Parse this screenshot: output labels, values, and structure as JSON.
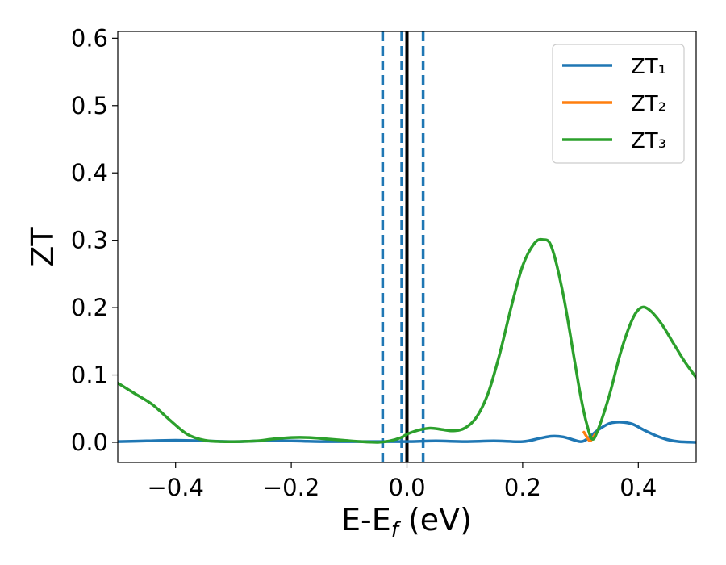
{
  "chart_data": {
    "type": "line",
    "xlabel": "E-E_f (eV)",
    "ylabel": "ZT",
    "xlim": [
      -0.5,
      0.5
    ],
    "ylim": [
      -0.03,
      0.61
    ],
    "xticks": [
      -0.4,
      -0.2,
      0.0,
      0.2,
      0.4
    ],
    "xtick_labels": [
      "−0.4",
      "−0.2",
      "0.0",
      "0.2",
      "0.4"
    ],
    "yticks": [
      0.0,
      0.1,
      0.2,
      0.3,
      0.4,
      0.5,
      0.6
    ],
    "ytick_labels": [
      "0.0",
      "0.1",
      "0.2",
      "0.3",
      "0.4",
      "0.5",
      "0.6"
    ],
    "grid": false,
    "legend_position": "top-right",
    "vlines": [
      {
        "x": -0.042,
        "style": "dashed",
        "color": "#1f77b4"
      },
      {
        "x": -0.009,
        "style": "dashed",
        "color": "#1f77b4"
      },
      {
        "x": 0.028,
        "style": "dashed",
        "color": "#1f77b4"
      },
      {
        "x": 0.0,
        "style": "solid",
        "color": "#000000"
      }
    ],
    "series": [
      {
        "name": "ZT₁",
        "color": "#1f77b4",
        "x": [
          -0.5,
          -0.45,
          -0.4,
          -0.35,
          -0.3,
          -0.25,
          -0.2,
          -0.15,
          -0.1,
          -0.05,
          0.0,
          0.05,
          0.1,
          0.15,
          0.2,
          0.23,
          0.25,
          0.27,
          0.29,
          0.3,
          0.31,
          0.33,
          0.35,
          0.37,
          0.39,
          0.41,
          0.43,
          0.45,
          0.47,
          0.5
        ],
        "y": [
          0.001,
          0.002,
          0.003,
          0.002,
          0.001,
          0.002,
          0.002,
          0.001,
          0.001,
          0.001,
          0.001,
          0.002,
          0.001,
          0.002,
          0.001,
          0.006,
          0.009,
          0.008,
          0.003,
          0.001,
          0.004,
          0.018,
          0.028,
          0.03,
          0.027,
          0.018,
          0.01,
          0.004,
          0.001,
          0.0
        ]
      },
      {
        "name": "ZT₂",
        "color": "#ff7f0e",
        "x": [
          0.306,
          0.311,
          0.316,
          0.321,
          0.326
        ],
        "y": [
          0.015,
          0.008,
          0.002,
          0.006,
          0.013
        ]
      },
      {
        "name": "ZT₃",
        "color": "#2ca02c",
        "x": [
          -0.5,
          -0.47,
          -0.44,
          -0.41,
          -0.38,
          -0.35,
          -0.32,
          -0.29,
          -0.26,
          -0.23,
          -0.2,
          -0.17,
          -0.14,
          -0.11,
          -0.08,
          -0.05,
          -0.03,
          -0.01,
          0.0,
          0.02,
          0.04,
          0.06,
          0.08,
          0.1,
          0.12,
          0.14,
          0.16,
          0.18,
          0.2,
          0.22,
          0.235,
          0.25,
          0.27,
          0.29,
          0.3,
          0.31,
          0.32,
          0.33,
          0.35,
          0.37,
          0.39,
          0.405,
          0.42,
          0.44,
          0.46,
          0.48,
          0.5
        ],
        "y": [
          0.088,
          0.072,
          0.056,
          0.033,
          0.012,
          0.003,
          0.001,
          0.001,
          0.002,
          0.005,
          0.007,
          0.007,
          0.005,
          0.003,
          0.001,
          0.0,
          0.002,
          0.007,
          0.012,
          0.018,
          0.021,
          0.019,
          0.017,
          0.021,
          0.037,
          0.072,
          0.13,
          0.2,
          0.262,
          0.295,
          0.301,
          0.29,
          0.22,
          0.12,
          0.07,
          0.03,
          0.005,
          0.018,
          0.07,
          0.135,
          0.183,
          0.2,
          0.196,
          0.176,
          0.148,
          0.12,
          0.096
        ]
      }
    ]
  }
}
